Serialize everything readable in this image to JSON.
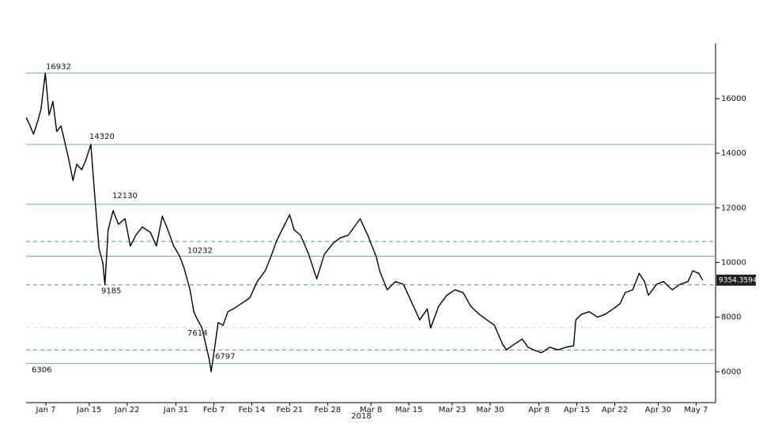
{
  "chart_data": {
    "type": "line",
    "color": "#000000",
    "x": [
      3.4,
      4.1,
      4.7,
      5.4,
      6.1,
      6.9,
      7.6,
      8.3,
      9,
      9.8,
      10.5,
      11.2,
      12,
      12.7,
      13.6,
      14.3,
      15.3,
      16,
      16.8,
      17.5,
      17.9,
      18.5,
      19.4,
      20.4,
      21.6,
      22.6,
      23.6,
      24.8,
      26.3,
      27.4,
      28.5,
      29.5,
      30.6,
      31.7,
      32.5,
      33.6,
      34.3,
      35,
      35.8,
      36.5,
      37.1,
      37.5,
      38.1,
      38.8,
      39.7,
      40.6,
      41.6,
      43.1,
      44.6,
      46,
      47.5,
      48.5,
      49.6,
      50.6,
      52,
      52.8,
      54,
      55.5,
      57,
      58.4,
      60,
      61.3,
      62.8,
      65,
      66.4,
      68,
      68.6,
      70,
      71.5,
      73,
      74.6,
      76,
      77.4,
      78,
      79.5,
      81,
      82.5,
      84,
      85.4,
      87,
      88.4,
      89.8,
      91.3,
      92,
      93.4,
      94.9,
      96,
      97,
      98.5,
      100,
      101.5,
      103,
      104.4,
      104.8,
      105.8,
      107.3,
      108.8,
      110.2,
      111.7,
      113,
      113.9,
      115.3,
      116.5,
      117.5,
      118.2,
      119.7,
      121,
      122.6,
      124,
      125.5,
      126.4,
      127.5,
      128.2
    ],
    "values": [
      15300,
      15000,
      14700,
      15100,
      15600,
      16932,
      15400,
      15900,
      14800,
      15000,
      14400,
      13800,
      13000,
      13600,
      13400,
      13700,
      14320,
      12500,
      10500,
      10000,
      9185,
      11200,
      11900,
      11400,
      11600,
      10600,
      11000,
      11300,
      11100,
      10600,
      11700,
      11200,
      10600,
      10232,
      9800,
      9000,
      8200,
      7900,
      7614,
      7000,
      6500,
      6000,
      6797,
      7800,
      7700,
      8200,
      8300,
      8500,
      8700,
      9300,
      9700,
      10200,
      10800,
      11200,
      11750,
      11200,
      11000,
      10300,
      9400,
      10300,
      10700,
      10900,
      11000,
      11600,
      11000,
      10200,
      9700,
      9000,
      9300,
      9200,
      8500,
      7900,
      8300,
      7600,
      8400,
      8800,
      9000,
      8900,
      8400,
      8100,
      7900,
      7700,
      7000,
      6800,
      7000,
      7200,
      6900,
      6800,
      6700,
      6900,
      6800,
      6900,
      6950,
      7900,
      8100,
      8200,
      8000,
      8100,
      8300,
      8500,
      8900,
      9000,
      9600,
      9300,
      8800,
      9200,
      9300,
      9000,
      9200,
      9300,
      9700,
      9600,
      9354.3594
    ],
    "last_value": 9354.3594,
    "levels": [
      {
        "value": 16932,
        "style": "solid",
        "color": "#5fb8a8"
      },
      {
        "value": 14320,
        "style": "solid",
        "color": "#5fb8a8"
      },
      {
        "value": 12130,
        "style": "solid",
        "color": "#5fb8a8"
      },
      {
        "value": 10232,
        "style": "solid",
        "color": "#5fb8a8"
      },
      {
        "value": 9185,
        "style": "dashed",
        "color": "#3f9e90"
      },
      {
        "value": 7614,
        "style": "dashed",
        "color": "#c8d0ce"
      },
      {
        "value": 6797,
        "style": "dashed",
        "color": "#3f9e90"
      },
      {
        "value": 6306,
        "style": "solid",
        "color": "#5fb8a8"
      }
    ],
    "unlabeled_levels": [
      {
        "value": 10769,
        "style": "dashed",
        "color": "#3f9e90"
      }
    ],
    "xlabel": "2018",
    "xlim": [
      3.35,
      130.6
    ],
    "xticks": [
      {
        "value": 7,
        "label": "Jan 7"
      },
      {
        "value": 15,
        "label": "Jan 15"
      },
      {
        "value": 22,
        "label": "Jan 22"
      },
      {
        "value": 31,
        "label": "Jan 31"
      },
      {
        "value": 38,
        "label": "Feb 7"
      },
      {
        "value": 45,
        "label": "Feb 14"
      },
      {
        "value": 52,
        "label": "Feb 21"
      },
      {
        "value": 59,
        "label": "Feb 28"
      },
      {
        "value": 67,
        "label": "Mar 8"
      },
      {
        "value": 74,
        "label": "Mar 15"
      },
      {
        "value": 82,
        "label": "Mar 23"
      },
      {
        "value": 89,
        "label": "Mar 30"
      },
      {
        "value": 98,
        "label": "Apr 8"
      },
      {
        "value": 105,
        "label": "Apr 15"
      },
      {
        "value": 112,
        "label": "Apr 22"
      },
      {
        "value": 120,
        "label": "Apr 30"
      },
      {
        "value": 127,
        "label": "May 7"
      }
    ],
    "ylim": [
      4870,
      18020
    ],
    "yticks": [
      6000,
      8000,
      10000,
      12000,
      14000,
      16000
    ]
  }
}
